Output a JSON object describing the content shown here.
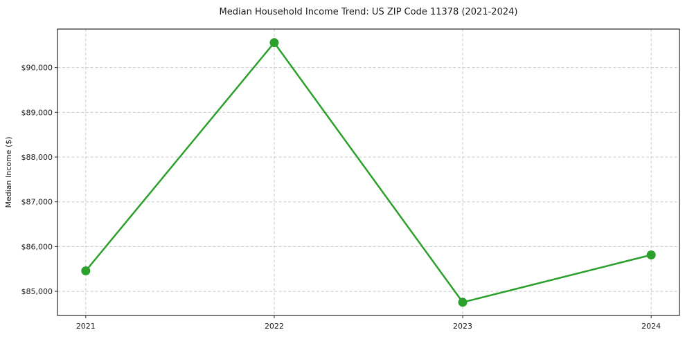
{
  "chart_data": {
    "type": "line",
    "title": "Median Household Income Trend: US ZIP Code 11378 (2021-2024)",
    "xlabel": "",
    "ylabel": "Median Income ($)",
    "x": [
      2021,
      2022,
      2023,
      2024
    ],
    "x_tick_labels": [
      "2021",
      "2022",
      "2023",
      "2024"
    ],
    "series": [
      {
        "name": "Median Household Income",
        "values": [
          85457,
          90556,
          84755,
          85813
        ],
        "color": "#2ca02c",
        "marker": "circle"
      }
    ],
    "y_ticks": [
      {
        "value": 85000,
        "label": "$85,000"
      },
      {
        "value": 86000,
        "label": "$86,000"
      },
      {
        "value": 87000,
        "label": "$87,000"
      },
      {
        "value": 88000,
        "label": "$88,000"
      },
      {
        "value": 89000,
        "label": "$89,000"
      },
      {
        "value": 90000,
        "label": "$90,000"
      }
    ],
    "xlim": [
      2020.85,
      2024.15
    ],
    "ylim": [
      84460,
      90860
    ],
    "grid": true,
    "grid_color": "#c9c9c9",
    "grid_style": "dashed",
    "legend_position": "none",
    "line_width": 2.5,
    "marker_diameter": 13,
    "spine_color": "#262626",
    "background_color": "#ffffff"
  }
}
